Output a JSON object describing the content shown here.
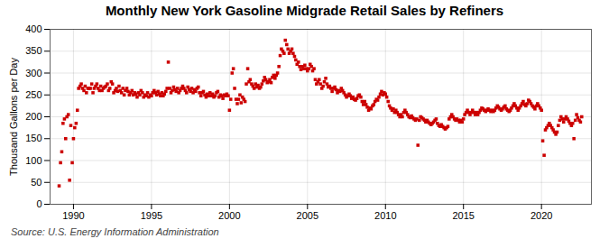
{
  "chart_data": {
    "type": "scatter",
    "title": "Monthly New York Gasoline Midgrade Retail Sales by Refiners",
    "ylabel": "Thousand Gallons per Day",
    "source": "Source: U.S. Energy Information Administration",
    "color": "#cc0000",
    "marker": "square",
    "grid": true,
    "xlim": [
      1988.5,
      2023.2
    ],
    "xticks": [
      1990,
      1995,
      2000,
      2005,
      2010,
      2015,
      2020
    ],
    "ylim": [
      0,
      400
    ],
    "yticks": [
      0,
      50,
      100,
      150,
      200,
      250,
      300,
      350,
      400
    ],
    "x": [
      1989.08,
      1989.17,
      1989.25,
      1989.33,
      1989.42,
      1989.5,
      1989.58,
      1989.67,
      1989.75,
      1989.83,
      1989.92,
      1990.0,
      1990.08,
      1990.17,
      1990.25,
      1990.33,
      1990.42,
      1990.5,
      1990.58,
      1990.67,
      1990.75,
      1990.83,
      1990.92,
      1991.0,
      1991.08,
      1991.17,
      1991.25,
      1991.33,
      1991.42,
      1991.5,
      1991.58,
      1991.67,
      1991.75,
      1991.83,
      1991.92,
      1992.0,
      1992.08,
      1992.17,
      1992.25,
      1992.33,
      1992.42,
      1992.5,
      1992.58,
      1992.67,
      1992.75,
      1992.83,
      1992.92,
      1993.0,
      1993.08,
      1993.17,
      1993.25,
      1993.33,
      1993.42,
      1993.5,
      1993.58,
      1993.67,
      1993.75,
      1993.83,
      1993.92,
      1994.0,
      1994.08,
      1994.17,
      1994.25,
      1994.33,
      1994.42,
      1994.5,
      1994.58,
      1994.67,
      1994.75,
      1994.83,
      1994.92,
      1995.0,
      1995.08,
      1995.17,
      1995.25,
      1995.33,
      1995.42,
      1995.5,
      1995.58,
      1995.67,
      1995.75,
      1995.83,
      1995.92,
      1996.0,
      1996.08,
      1996.17,
      1996.25,
      1996.33,
      1996.42,
      1996.5,
      1996.58,
      1996.67,
      1996.75,
      1996.83,
      1996.92,
      1997.0,
      1997.08,
      1997.17,
      1997.25,
      1997.33,
      1997.42,
      1997.5,
      1997.58,
      1997.67,
      1997.75,
      1997.83,
      1997.92,
      1998.0,
      1998.08,
      1998.17,
      1998.25,
      1998.33,
      1998.42,
      1998.5,
      1998.58,
      1998.67,
      1998.75,
      1998.83,
      1998.92,
      1999.0,
      1999.08,
      1999.17,
      1999.25,
      1999.33,
      1999.42,
      1999.5,
      1999.58,
      1999.67,
      1999.75,
      1999.83,
      1999.92,
      2000.0,
      2000.08,
      2000.17,
      2000.25,
      2000.33,
      2000.42,
      2000.5,
      2000.58,
      2000.67,
      2000.75,
      2000.83,
      2000.92,
      2001.0,
      2001.08,
      2001.17,
      2001.25,
      2001.33,
      2001.42,
      2001.5,
      2001.58,
      2001.67,
      2001.75,
      2001.83,
      2001.92,
      2002.0,
      2002.08,
      2002.17,
      2002.25,
      2002.33,
      2002.42,
      2002.5,
      2002.58,
      2002.67,
      2002.75,
      2002.83,
      2002.92,
      2003.0,
      2003.08,
      2003.17,
      2003.25,
      2003.33,
      2003.42,
      2003.5,
      2003.58,
      2003.67,
      2003.75,
      2003.83,
      2003.92,
      2004.0,
      2004.08,
      2004.17,
      2004.25,
      2004.33,
      2004.42,
      2004.5,
      2004.58,
      2004.67,
      2004.75,
      2004.83,
      2004.92,
      2005.0,
      2005.08,
      2005.17,
      2005.25,
      2005.33,
      2005.42,
      2005.5,
      2005.58,
      2005.67,
      2005.75,
      2005.83,
      2005.92,
      2006.0,
      2006.08,
      2006.17,
      2006.25,
      2006.33,
      2006.42,
      2006.5,
      2006.58,
      2006.67,
      2006.75,
      2006.83,
      2006.92,
      2007.0,
      2007.08,
      2007.17,
      2007.25,
      2007.33,
      2007.42,
      2007.5,
      2007.58,
      2007.67,
      2007.75,
      2007.83,
      2007.92,
      2008.0,
      2008.08,
      2008.17,
      2008.25,
      2008.33,
      2008.42,
      2008.5,
      2008.58,
      2008.67,
      2008.75,
      2008.83,
      2008.92,
      2009.0,
      2009.08,
      2009.17,
      2009.25,
      2009.33,
      2009.42,
      2009.5,
      2009.58,
      2009.67,
      2009.75,
      2009.83,
      2009.92,
      2010.0,
      2010.08,
      2010.17,
      2010.25,
      2010.33,
      2010.42,
      2010.5,
      2010.58,
      2010.67,
      2010.75,
      2010.83,
      2010.92,
      2011.0,
      2011.08,
      2011.17,
      2011.25,
      2011.33,
      2011.42,
      2011.5,
      2011.58,
      2011.67,
      2011.75,
      2011.83,
      2011.92,
      2012.0,
      2012.08,
      2012.17,
      2012.25,
      2012.33,
      2012.42,
      2012.5,
      2012.58,
      2012.67,
      2012.75,
      2012.83,
      2012.92,
      2013.0,
      2013.08,
      2013.17,
      2013.25,
      2013.33,
      2013.42,
      2013.5,
      2013.58,
      2013.67,
      2013.75,
      2013.83,
      2013.92,
      2014.0,
      2014.08,
      2014.17,
      2014.25,
      2014.33,
      2014.42,
      2014.5,
      2014.58,
      2014.67,
      2014.75,
      2014.83,
      2014.92,
      2015.0,
      2015.08,
      2015.17,
      2015.25,
      2015.33,
      2015.42,
      2015.5,
      2015.58,
      2015.67,
      2015.75,
      2015.83,
      2015.92,
      2016.0,
      2016.08,
      2016.17,
      2016.25,
      2016.33,
      2016.42,
      2016.5,
      2016.58,
      2016.67,
      2016.75,
      2016.83,
      2016.92,
      2017.0,
      2017.08,
      2017.17,
      2017.25,
      2017.33,
      2017.42,
      2017.5,
      2017.58,
      2017.67,
      2017.75,
      2017.83,
      2017.92,
      2018.0,
      2018.08,
      2018.17,
      2018.25,
      2018.33,
      2018.42,
      2018.5,
      2018.58,
      2018.67,
      2018.75,
      2018.83,
      2018.92,
      2019.0,
      2019.08,
      2019.17,
      2019.25,
      2019.33,
      2019.42,
      2019.5,
      2019.58,
      2019.67,
      2019.75,
      2019.83,
      2019.92,
      2020.0,
      2020.08,
      2020.17,
      2020.25,
      2020.33,
      2020.42,
      2020.5,
      2020.58,
      2020.67,
      2020.75,
      2020.83,
      2020.92,
      2021.0,
      2021.08,
      2021.17,
      2021.25,
      2021.33,
      2021.42,
      2021.5,
      2021.58,
      2021.67,
      2021.75,
      2021.83,
      2021.92,
      2022.0,
      2022.08,
      2022.17,
      2022.25,
      2022.33,
      2022.42,
      2022.5,
      2022.58
    ],
    "values": [
      42,
      95,
      120,
      185,
      195,
      150,
      200,
      205,
      55,
      180,
      95,
      150,
      175,
      185,
      215,
      265,
      270,
      275,
      265,
      260,
      270,
      255,
      265,
      265,
      265,
      275,
      255,
      265,
      270,
      275,
      265,
      260,
      270,
      260,
      265,
      268,
      270,
      275,
      260,
      265,
      280,
      275,
      255,
      260,
      265,
      258,
      270,
      260,
      255,
      265,
      250,
      260,
      265,
      258,
      250,
      255,
      260,
      250,
      255,
      252,
      245,
      255,
      250,
      260,
      255,
      245,
      250,
      248,
      255,
      245,
      250,
      248,
      255,
      260,
      255,
      250,
      258,
      252,
      248,
      255,
      248,
      252,
      258,
      265,
      325,
      265,
      255,
      260,
      268,
      262,
      258,
      265,
      255,
      260,
      265,
      270,
      265,
      260,
      255,
      268,
      262,
      258,
      265,
      255,
      262,
      258,
      265,
      268,
      255,
      248,
      255,
      258,
      250,
      245,
      252,
      248,
      255,
      248,
      252,
      245,
      248,
      255,
      258,
      245,
      250,
      248,
      242,
      250,
      248,
      252,
      248,
      215,
      240,
      300,
      310,
      265,
      240,
      230,
      240,
      250,
      232,
      245,
      240,
      235,
      275,
      310,
      280,
      285,
      275,
      270,
      265,
      275,
      268,
      272,
      265,
      268,
      275,
      282,
      290,
      285,
      278,
      280,
      285,
      278,
      290,
      295,
      288,
      295,
      300,
      315,
      340,
      355,
      350,
      345,
      375,
      365,
      355,
      345,
      350,
      355,
      345,
      338,
      330,
      320,
      325,
      315,
      308,
      315,
      310,
      318,
      310,
      305,
      310,
      320,
      315,
      305,
      310,
      285,
      275,
      280,
      285,
      275,
      265,
      270,
      280,
      288,
      275,
      268,
      270,
      265,
      258,
      265,
      268,
      262,
      255,
      260,
      258,
      265,
      260,
      255,
      250,
      245,
      248,
      252,
      248,
      242,
      245,
      240,
      238,
      242,
      248,
      250,
      245,
      235,
      228,
      235,
      228,
      222,
      215,
      220,
      218,
      225,
      228,
      235,
      240,
      238,
      245,
      252,
      258,
      250,
      255,
      252,
      245,
      235,
      225,
      220,
      215,
      218,
      210,
      215,
      210,
      205,
      200,
      205,
      200,
      210,
      215,
      210,
      205,
      200,
      198,
      202,
      198,
      195,
      192,
      195,
      135,
      192,
      200,
      198,
      195,
      192,
      188,
      192,
      188,
      185,
      182,
      185,
      188,
      192,
      195,
      185,
      180,
      178,
      182,
      178,
      175,
      172,
      175,
      178,
      195,
      200,
      205,
      200,
      195,
      192,
      195,
      192,
      188,
      192,
      188,
      195,
      205,
      210,
      215,
      210,
      205,
      210,
      215,
      210,
      205,
      210,
      205,
      210,
      215,
      220,
      218,
      215,
      212,
      215,
      218,
      215,
      212,
      215,
      212,
      215,
      220,
      225,
      222,
      218,
      215,
      218,
      222,
      225,
      218,
      215,
      212,
      215,
      220,
      225,
      230,
      225,
      220,
      215,
      220,
      225,
      230,
      235,
      228,
      225,
      230,
      238,
      235,
      230,
      225,
      222,
      218,
      225,
      230,
      225,
      220,
      215,
      145,
      112,
      170,
      175,
      180,
      185,
      180,
      175,
      170,
      165,
      160,
      165,
      180,
      192,
      200,
      195,
      188,
      195,
      200,
      195,
      190,
      185,
      180,
      185,
      150,
      192,
      205,
      198,
      192,
      188,
      200
    ]
  }
}
